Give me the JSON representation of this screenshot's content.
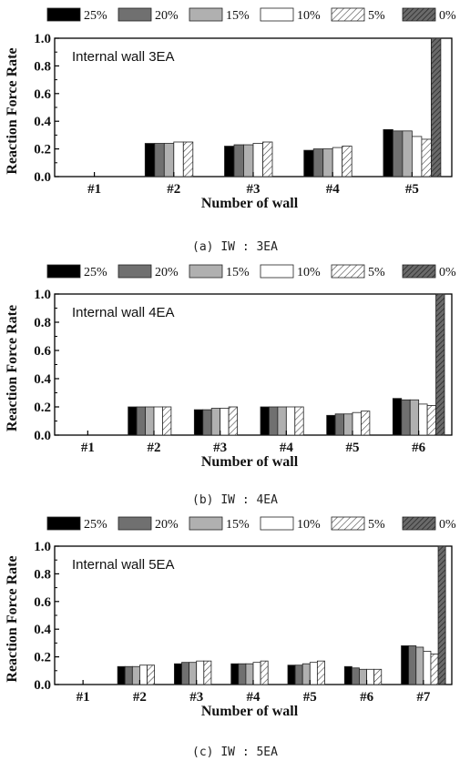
{
  "legend": {
    "entries": [
      "25%",
      "20%",
      "15%",
      "10%",
      "5%",
      "0%"
    ],
    "colors": [
      "#000000",
      "#707070",
      "#b0b0b0",
      "#ffffff",
      "hatch",
      "dark-hatch"
    ]
  },
  "chart_data": [
    {
      "type": "bar",
      "caption": "(a) IW : 3EA",
      "annotation": "Internal wall 3EA",
      "xlabel": "Number of wall",
      "ylabel": "Reaction Force Rate",
      "ylim": [
        0,
        1.0
      ],
      "yticks": [
        "0.0",
        "0.2",
        "0.4",
        "0.6",
        "0.8",
        "1.0"
      ],
      "categories": [
        "#1",
        "#2",
        "#3",
        "#4",
        "#5"
      ],
      "series": [
        {
          "name": "25%",
          "values": [
            0,
            0.24,
            0.22,
            0.19,
            0.34
          ]
        },
        {
          "name": "20%",
          "values": [
            0,
            0.24,
            0.23,
            0.2,
            0.33
          ]
        },
        {
          "name": "15%",
          "values": [
            0,
            0.24,
            0.23,
            0.2,
            0.33
          ]
        },
        {
          "name": "10%",
          "values": [
            0,
            0.25,
            0.24,
            0.21,
            0.29
          ]
        },
        {
          "name": "5%",
          "values": [
            0,
            0.25,
            0.25,
            0.22,
            0.27
          ]
        },
        {
          "name": "0%",
          "values": [
            0,
            0,
            0,
            0,
            1.0
          ]
        }
      ]
    },
    {
      "type": "bar",
      "caption": "(b) IW : 4EA",
      "annotation": "Internal wall 4EA",
      "xlabel": "Number of wall",
      "ylabel": "Reaction Force Rate",
      "ylim": [
        0,
        1.0
      ],
      "yticks": [
        "0.0",
        "0.2",
        "0.4",
        "0.6",
        "0.8",
        "1.0"
      ],
      "categories": [
        "#1",
        "#2",
        "#3",
        "#4",
        "#5",
        "#6"
      ],
      "series": [
        {
          "name": "25%",
          "values": [
            0,
            0.2,
            0.18,
            0.2,
            0.14,
            0.26
          ]
        },
        {
          "name": "20%",
          "values": [
            0,
            0.2,
            0.18,
            0.2,
            0.15,
            0.25
          ]
        },
        {
          "name": "15%",
          "values": [
            0,
            0.2,
            0.19,
            0.2,
            0.15,
            0.25
          ]
        },
        {
          "name": "10%",
          "values": [
            0,
            0.2,
            0.19,
            0.2,
            0.16,
            0.22
          ]
        },
        {
          "name": "5%",
          "values": [
            0,
            0.2,
            0.2,
            0.2,
            0.17,
            0.21
          ]
        },
        {
          "name": "0%",
          "values": [
            0,
            0,
            0,
            0,
            0,
            1.0
          ]
        }
      ]
    },
    {
      "type": "bar",
      "caption": "(c) IW : 5EA",
      "annotation": "Internal wall 5EA",
      "xlabel": "Number of wall",
      "ylabel": "Reaction Force Rate",
      "ylim": [
        0,
        1.0
      ],
      "yticks": [
        "0.0",
        "0.2",
        "0.4",
        "0.6",
        "0.8",
        "1.0"
      ],
      "categories": [
        "#1",
        "#2",
        "#3",
        "#4",
        "#5",
        "#6",
        "#7"
      ],
      "series": [
        {
          "name": "25%",
          "values": [
            0,
            0.13,
            0.15,
            0.15,
            0.14,
            0.13,
            0.28
          ]
        },
        {
          "name": "20%",
          "values": [
            0,
            0.13,
            0.16,
            0.15,
            0.14,
            0.12,
            0.28
          ]
        },
        {
          "name": "15%",
          "values": [
            0,
            0.13,
            0.16,
            0.15,
            0.15,
            0.11,
            0.27
          ]
        },
        {
          "name": "10%",
          "values": [
            0,
            0.14,
            0.17,
            0.16,
            0.16,
            0.11,
            0.24
          ]
        },
        {
          "name": "5%",
          "values": [
            0,
            0.14,
            0.17,
            0.17,
            0.17,
            0.11,
            0.22
          ]
        },
        {
          "name": "0%",
          "values": [
            0,
            0,
            0,
            0,
            0,
            0,
            1.0
          ]
        }
      ]
    }
  ]
}
